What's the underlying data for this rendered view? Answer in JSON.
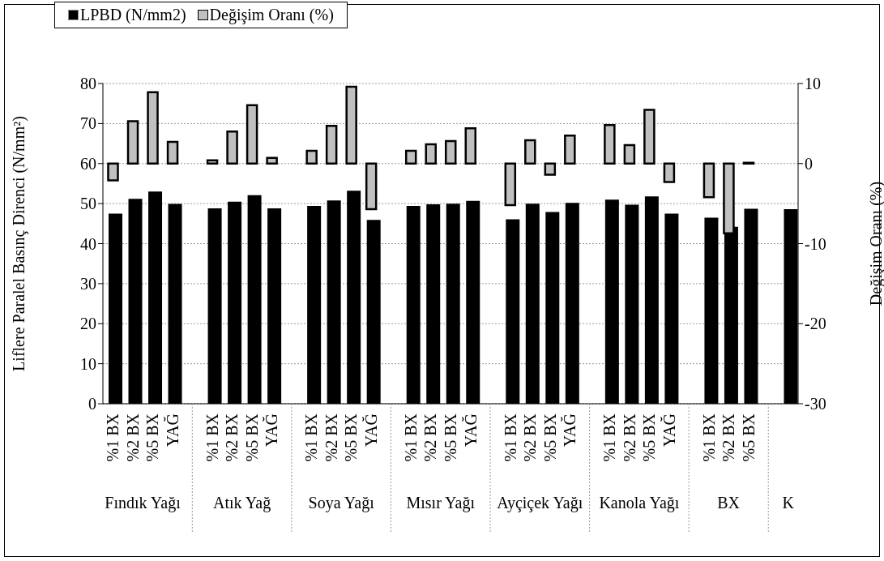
{
  "chart_data": {
    "type": "bar",
    "ylabel": "Liflere Paralel Basınç Direnci (N/mm²)",
    "y2label": "Değişim Oranı (%)",
    "categories": [
      "%1 BX",
      "%2 BX",
      "%5 BX",
      "YAĞ",
      null,
      "%1 BX",
      "%2 BX",
      "%5 BX",
      "YAĞ",
      null,
      "%1 BX",
      "%2 BX",
      "%5 BX",
      "YAĞ",
      null,
      "%1 BX",
      "%2 BX",
      "%5 BX",
      "YAĞ",
      null,
      "%1 BX",
      "%2 BX",
      "%5 BX",
      "YAĞ",
      null,
      "%1 BX",
      "%2 BX",
      "%5 BX",
      "YAĞ",
      null,
      "%1 BX",
      "%2 BX",
      "%5 BX",
      null,
      null
    ],
    "series": [
      {
        "name": "LPBD (N/mm2)",
        "color": "#000000",
        "values": [
          47.5,
          51.2,
          53.0,
          49.9,
          null,
          48.8,
          50.5,
          52.1,
          48.8,
          null,
          49.4,
          50.8,
          53.2,
          45.9,
          null,
          49.4,
          49.8,
          50.0,
          50.7,
          null,
          46.1,
          50.0,
          47.9,
          50.2,
          null,
          51.0,
          49.7,
          51.8,
          47.5,
          null,
          46.5,
          44.2,
          48.7,
          null,
          48.6
        ]
      },
      {
        "name": "Değişim Oranı (%)",
        "color": "#c0c0c0",
        "axis": "y2",
        "values": [
          -2.1,
          5.3,
          8.9,
          2.7,
          null,
          0.4,
          4.0,
          7.3,
          0.7,
          null,
          1.6,
          4.7,
          9.6,
          -5.7,
          null,
          1.6,
          2.4,
          2.8,
          4.4,
          null,
          -5.2,
          2.9,
          -1.4,
          3.5,
          null,
          4.8,
          2.3,
          6.7,
          -2.3,
          null,
          -4.2,
          -8.7,
          0.1,
          null,
          null
        ]
      }
    ],
    "annotations": [
      "Fındık Yağı",
      "Atık Yağ",
      "Soya Yağı",
      "Mısır Yağı",
      "Ayçiçek Yağı",
      "Kanola Yağı",
      "BX",
      "K"
    ],
    "ylim": [
      0,
      80
    ],
    "yticks": [
      0,
      10,
      20,
      30,
      40,
      50,
      60,
      70,
      80
    ],
    "y2lim": [
      -30,
      10
    ],
    "y2ticks": [
      -30,
      -20,
      -10,
      0,
      10
    ],
    "grid": "y",
    "legend": "top"
  }
}
